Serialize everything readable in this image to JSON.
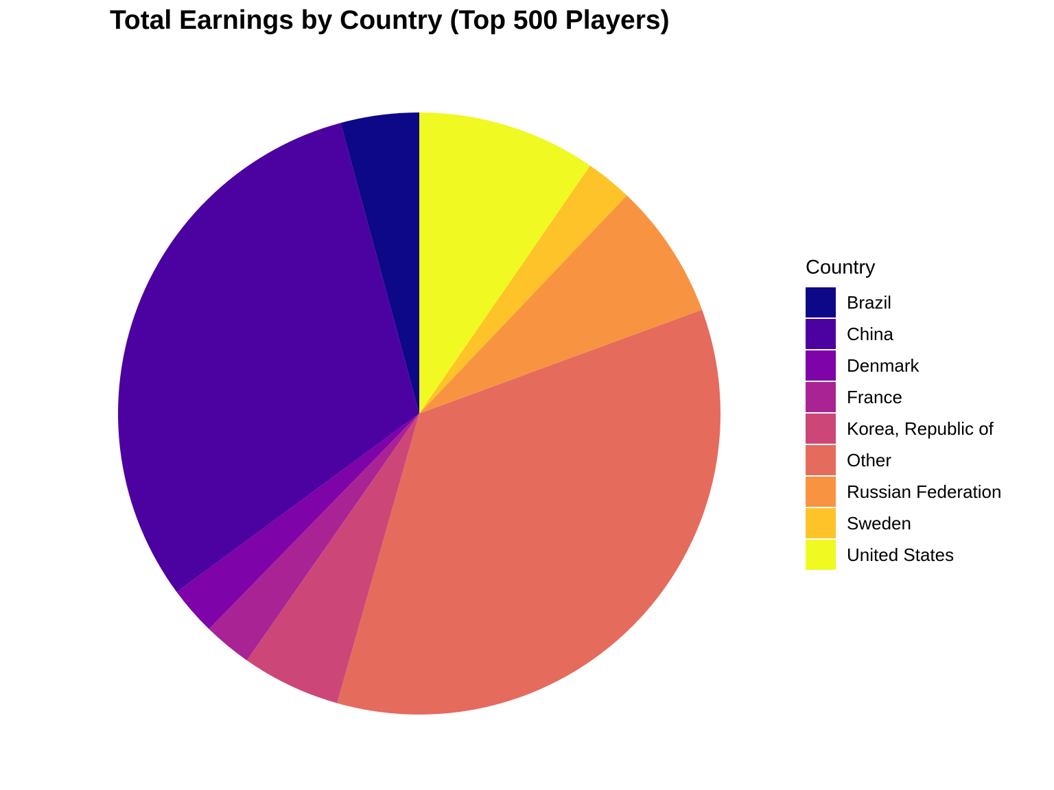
{
  "chart_data": {
    "type": "pie",
    "title": "Total Earnings by Country (Top 500 Players)",
    "legend_title": "Country",
    "legend_position": "right",
    "categories": [
      "Brazil",
      "China",
      "Denmark",
      "France",
      "Korea, Republic of",
      "Other",
      "Russian Federation",
      "Sweden",
      "United States"
    ],
    "values": [
      4.2,
      30.9,
      2.6,
      2.6,
      5.3,
      35.0,
      7.3,
      2.5,
      9.6
    ],
    "value_unit": "percent of total earnings",
    "slice_order": "counterclockwise from 12 o'clock, legend order",
    "colors": [
      "#0D0887",
      "#4C02A1",
      "#7E03A8",
      "#A92395",
      "#CC4778",
      "#E56B5D",
      "#F89441",
      "#FDC328",
      "#F0F921"
    ]
  }
}
